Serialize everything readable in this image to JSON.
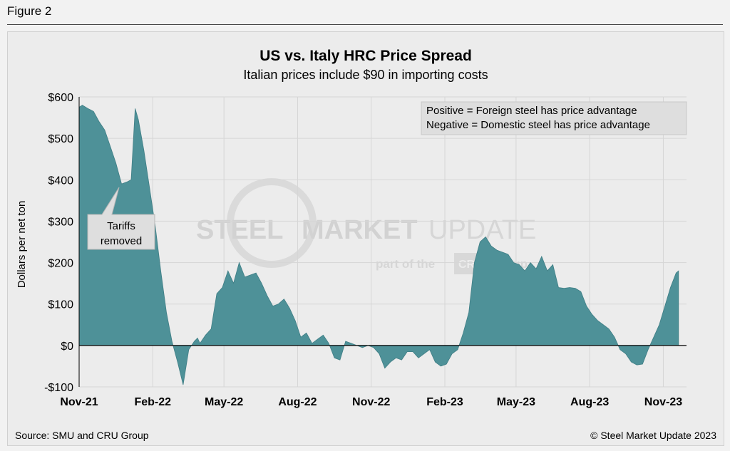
{
  "figure_label": "Figure 2",
  "footer": {
    "source": "Source: SMU and CRU Group",
    "copyright": "© Steel Market Update 2023"
  },
  "watermark": {
    "steel": "STEEL",
    "market": "MARKET",
    "update": "UPDATE",
    "part_of": "part of the",
    "cru": "CRU",
    "group": "Group"
  },
  "colors": {
    "area_fill": "#4e9198",
    "area_stroke": "#3f7e85",
    "grid": "#d6d6d6"
  },
  "chart_data": {
    "type": "area",
    "title": "US vs. Italy HRC Price Spread",
    "subtitle": "Italian prices include $90 in importing costs",
    "ylabel": "Dollars per net ton",
    "ylim": [
      -100,
      600
    ],
    "yticks": [
      -100,
      0,
      100,
      200,
      300,
      400,
      500,
      600
    ],
    "ytick_labels": [
      "-$100",
      "$0",
      "$100",
      "$200",
      "$300",
      "$400",
      "$500",
      "$600"
    ],
    "xlim": [
      "2021-11-01",
      "2023-11-30"
    ],
    "xticks": [
      "2021-11-01",
      "2022-02-01",
      "2022-05-01",
      "2022-08-01",
      "2022-11-01",
      "2023-02-01",
      "2023-05-01",
      "2023-08-01",
      "2023-11-01"
    ],
    "xtick_labels": [
      "Nov-21",
      "Feb-22",
      "May-22",
      "Aug-22",
      "Nov-22",
      "Feb-23",
      "May-23",
      "Aug-23",
      "Nov-23"
    ],
    "grid": true,
    "legend_box": {
      "position": "top-right",
      "lines": [
        "Positive = Foreign steel has price advantage",
        "Negative = Domestic steel has price advantage"
      ]
    },
    "annotations": [
      {
        "text_lines": [
          "Tariffs",
          "removed"
        ],
        "x": "2022-01-01",
        "y": 400
      }
    ],
    "series": [
      {
        "values": [
          [
            "2021-11-01",
            575
          ],
          [
            "2021-11-05",
            580
          ],
          [
            "2021-11-12",
            572
          ],
          [
            "2021-11-19",
            565
          ],
          [
            "2021-11-26",
            540
          ],
          [
            "2021-12-03",
            520
          ],
          [
            "2021-12-10",
            480
          ],
          [
            "2021-12-17",
            440
          ],
          [
            "2021-12-24",
            390
          ],
          [
            "2021-12-31",
            395
          ],
          [
            "2022-01-05",
            400
          ],
          [
            "2022-01-10",
            572
          ],
          [
            "2022-01-14",
            545
          ],
          [
            "2022-01-21",
            470
          ],
          [
            "2022-01-28",
            380
          ],
          [
            "2022-02-04",
            290
          ],
          [
            "2022-02-11",
            180
          ],
          [
            "2022-02-18",
            80
          ],
          [
            "2022-02-25",
            10
          ],
          [
            "2022-03-04",
            -40
          ],
          [
            "2022-03-11",
            -95
          ],
          [
            "2022-03-18",
            -10
          ],
          [
            "2022-03-25",
            10
          ],
          [
            "2022-03-29",
            18
          ],
          [
            "2022-04-01",
            5
          ],
          [
            "2022-04-08",
            25
          ],
          [
            "2022-04-15",
            40
          ],
          [
            "2022-04-22",
            125
          ],
          [
            "2022-04-29",
            140
          ],
          [
            "2022-05-06",
            180
          ],
          [
            "2022-05-13",
            150
          ],
          [
            "2022-05-20",
            200
          ],
          [
            "2022-05-27",
            165
          ],
          [
            "2022-06-03",
            170
          ],
          [
            "2022-06-10",
            175
          ],
          [
            "2022-06-17",
            150
          ],
          [
            "2022-06-24",
            120
          ],
          [
            "2022-07-01",
            95
          ],
          [
            "2022-07-08",
            100
          ],
          [
            "2022-07-15",
            112
          ],
          [
            "2022-07-22",
            90
          ],
          [
            "2022-07-29",
            60
          ],
          [
            "2022-08-05",
            20
          ],
          [
            "2022-08-12",
            30
          ],
          [
            "2022-08-19",
            5
          ],
          [
            "2022-08-26",
            15
          ],
          [
            "2022-09-02",
            25
          ],
          [
            "2022-09-09",
            5
          ],
          [
            "2022-09-16",
            -30
          ],
          [
            "2022-09-23",
            -35
          ],
          [
            "2022-09-30",
            10
          ],
          [
            "2022-10-07",
            5
          ],
          [
            "2022-10-14",
            0
          ],
          [
            "2022-10-21",
            -5
          ],
          [
            "2022-10-28",
            0
          ],
          [
            "2022-11-04",
            -5
          ],
          [
            "2022-11-11",
            -20
          ],
          [
            "2022-11-18",
            -55
          ],
          [
            "2022-11-25",
            -40
          ],
          [
            "2022-12-02",
            -30
          ],
          [
            "2022-12-09",
            -35
          ],
          [
            "2022-12-16",
            -15
          ],
          [
            "2022-12-23",
            -15
          ],
          [
            "2022-12-30",
            -30
          ],
          [
            "2023-01-06",
            -20
          ],
          [
            "2023-01-13",
            -10
          ],
          [
            "2023-01-20",
            -40
          ],
          [
            "2023-01-27",
            -50
          ],
          [
            "2023-02-03",
            -45
          ],
          [
            "2023-02-10",
            -20
          ],
          [
            "2023-02-17",
            -10
          ],
          [
            "2023-02-24",
            30
          ],
          [
            "2023-03-03",
            80
          ],
          [
            "2023-03-10",
            200
          ],
          [
            "2023-03-17",
            250
          ],
          [
            "2023-03-24",
            262
          ],
          [
            "2023-03-31",
            240
          ],
          [
            "2023-04-07",
            230
          ],
          [
            "2023-04-14",
            225
          ],
          [
            "2023-04-21",
            220
          ],
          [
            "2023-04-28",
            200
          ],
          [
            "2023-05-05",
            195
          ],
          [
            "2023-05-12",
            180
          ],
          [
            "2023-05-19",
            200
          ],
          [
            "2023-05-26",
            185
          ],
          [
            "2023-06-02",
            215
          ],
          [
            "2023-06-09",
            180
          ],
          [
            "2023-06-16",
            195
          ],
          [
            "2023-06-23",
            140
          ],
          [
            "2023-06-30",
            138
          ],
          [
            "2023-07-07",
            140
          ],
          [
            "2023-07-14",
            138
          ],
          [
            "2023-07-21",
            130
          ],
          [
            "2023-07-28",
            95
          ],
          [
            "2023-08-04",
            75
          ],
          [
            "2023-08-11",
            60
          ],
          [
            "2023-08-18",
            50
          ],
          [
            "2023-08-25",
            40
          ],
          [
            "2023-09-01",
            20
          ],
          [
            "2023-09-08",
            -10
          ],
          [
            "2023-09-15",
            -20
          ],
          [
            "2023-09-22",
            -40
          ],
          [
            "2023-09-29",
            -47
          ],
          [
            "2023-10-06",
            -45
          ],
          [
            "2023-10-13",
            -10
          ],
          [
            "2023-10-20",
            20
          ],
          [
            "2023-10-27",
            50
          ],
          [
            "2023-11-03",
            95
          ],
          [
            "2023-11-10",
            140
          ],
          [
            "2023-11-17",
            175
          ],
          [
            "2023-11-20",
            180
          ]
        ]
      }
    ]
  }
}
